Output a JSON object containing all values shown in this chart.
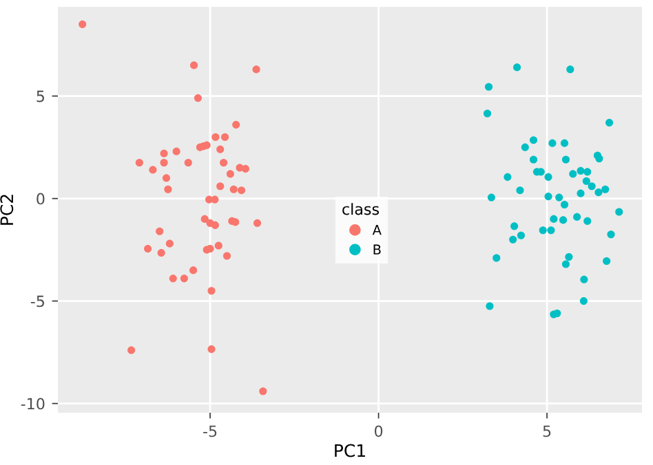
{
  "chart_data": {
    "type": "scatter",
    "xlabel": "PC1",
    "ylabel": "PC2",
    "legend_title": "class",
    "legend": "center",
    "grid": true,
    "marker": "circle",
    "xlim": [
      -9.52,
      7.82
    ],
    "ylim": [
      -10.45,
      9.35
    ],
    "xticks": [
      -5,
      0,
      5
    ],
    "yticks": [
      -10,
      -5,
      0,
      5
    ],
    "series": [
      {
        "name": "A",
        "color": "#f8766d",
        "x": [
          -8.79,
          -5.48,
          -3.63,
          -5.36,
          -4.23,
          -4.84,
          -4.56,
          -5.3,
          -5.2,
          -5.1,
          -4.7,
          -6.37,
          -6.0,
          -7.1,
          -6.37,
          -5.65,
          -6.7,
          -6.3,
          -6.25,
          -4.6,
          -4.12,
          -3.95,
          -4.4,
          -4.7,
          -4.3,
          -4.07,
          -5.03,
          -4.86,
          -5.16,
          -5.0,
          -4.85,
          -4.35,
          -4.25,
          -3.6,
          -6.5,
          -6.2,
          -6.85,
          -6.45,
          -5.1,
          -5.0,
          -4.75,
          -4.5,
          -5.5,
          -5.77,
          -6.1,
          -4.96,
          -7.34,
          -4.96,
          -3.43
        ],
        "values": [
          8.5,
          6.5,
          6.3,
          4.9,
          3.6,
          3.0,
          3.0,
          2.5,
          2.55,
          2.6,
          2.4,
          2.2,
          2.3,
          1.75,
          1.75,
          1.75,
          1.4,
          1.0,
          0.45,
          1.75,
          1.5,
          1.45,
          1.2,
          0.6,
          0.45,
          0.4,
          -0.05,
          -0.05,
          -1.0,
          -1.2,
          -1.3,
          -1.1,
          -1.15,
          -1.2,
          -1.6,
          -2.2,
          -2.45,
          -2.65,
          -2.5,
          -2.45,
          -2.3,
          -2.8,
          -3.5,
          -3.9,
          -3.9,
          -4.5,
          -7.4,
          -7.35,
          -9.4
        ]
      },
      {
        "name": "B",
        "color": "#00bfc4",
        "x": [
          4.11,
          5.69,
          3.27,
          3.23,
          6.85,
          4.6,
          4.35,
          5.16,
          5.52,
          6.5,
          6.55,
          4.6,
          5.56,
          4.7,
          4.82,
          3.83,
          5.04,
          5.77,
          6.0,
          6.2,
          6.17,
          6.33,
          6.73,
          6.0,
          6.53,
          4.2,
          3.35,
          5.04,
          5.36,
          5.52,
          7.14,
          5.2,
          5.48,
          5.89,
          6.2,
          4.03,
          4.23,
          3.99,
          4.88,
          5.12,
          6.9,
          3.5,
          5.65,
          5.56,
          6.77,
          6.1,
          3.3,
          6.09,
          5.2,
          5.3
        ],
        "values": [
          6.4,
          6.3,
          5.45,
          4.15,
          3.7,
          2.85,
          2.5,
          2.7,
          2.7,
          2.1,
          1.95,
          1.9,
          1.9,
          1.3,
          1.3,
          1.05,
          1.05,
          1.2,
          1.35,
          1.3,
          0.85,
          0.6,
          0.45,
          0.25,
          0.3,
          0.4,
          0.05,
          0.1,
          0.05,
          -0.3,
          -0.65,
          -1.0,
          -1.05,
          -0.9,
          -1.1,
          -1.35,
          -1.8,
          -2.0,
          -1.55,
          -1.55,
          -1.75,
          -2.9,
          -2.85,
          -3.2,
          -3.05,
          -3.95,
          -5.25,
          -5.0,
          -5.65,
          -5.6
        ]
      }
    ]
  }
}
